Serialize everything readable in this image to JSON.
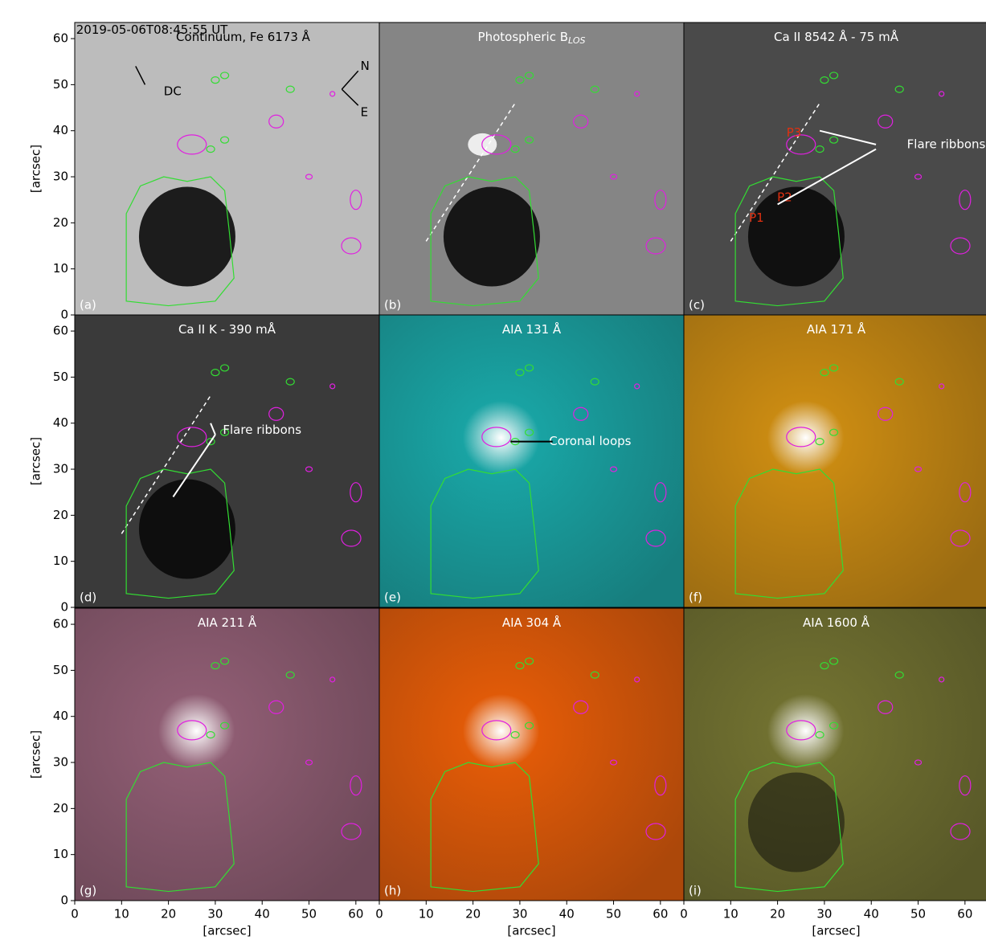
{
  "chart_data": [
    {
      "type": "image",
      "title": "Continuum, Fe 6173 Å",
      "panel_label": "(a)",
      "color": "#bcbcbc",
      "xlim": [
        0,
        65
      ],
      "ylim": [
        0,
        63.5
      ],
      "yticks": [
        0,
        10,
        20,
        30,
        40,
        50,
        60
      ],
      "ylabel": "[arcsec]",
      "annotations": [
        "2019-05-06T08:45:55 UT",
        "DC",
        "N",
        "E"
      ]
    },
    {
      "type": "image",
      "title": "Photospheric B",
      "title_sub": "LOS",
      "panel_label": "(b)",
      "color": "#858585",
      "xlim": [
        0,
        65
      ],
      "ylim": [
        0,
        63.5
      ]
    },
    {
      "type": "image",
      "title": "Ca II 8542 Å - 75 mÅ",
      "panel_label": "(c)",
      "color": "#4a4a4a",
      "xlim": [
        0,
        65
      ],
      "ylim": [
        0,
        63.5
      ],
      "annotations": [
        "Flare ribbons",
        "P1",
        "P2",
        "P3"
      ]
    },
    {
      "type": "image",
      "title": "Ca II K - 390 mÅ",
      "panel_label": "(d)",
      "color": "#3a3a3a",
      "xlim": [
        0,
        65
      ],
      "ylim": [
        0,
        63.5
      ],
      "yticks": [
        0,
        10,
        20,
        30,
        40,
        50,
        60
      ],
      "ylabel": "[arcsec]",
      "annotations": [
        "Flare ribbons"
      ]
    },
    {
      "type": "image",
      "title": "AIA 131 Å",
      "panel_label": "(e)",
      "color": "#19a3a3",
      "xlim": [
        0,
        65
      ],
      "ylim": [
        0,
        63.5
      ],
      "annotations": [
        "Coronal loops"
      ]
    },
    {
      "type": "image",
      "title": "AIA 171 Å",
      "panel_label": "(f)",
      "color": "#c98a12",
      "xlim": [
        0,
        65
      ],
      "ylim": [
        0,
        63.5
      ]
    },
    {
      "type": "image",
      "title": "AIA 211 Å",
      "panel_label": "(g)",
      "color": "#8e5c72",
      "xlim": [
        0,
        65
      ],
      "ylim": [
        0,
        63.5
      ],
      "xticks": [
        0,
        10,
        20,
        30,
        40,
        50,
        60
      ],
      "yticks": [
        0,
        10,
        20,
        30,
        40,
        50,
        60
      ],
      "xlabel": "[arcsec]",
      "ylabel": "[arcsec]"
    },
    {
      "type": "image",
      "title": "AIA 304 Å",
      "panel_label": "(h)",
      "color": "#e05a08",
      "xlim": [
        0,
        65
      ],
      "ylim": [
        0,
        63.5
      ],
      "xticks": [
        0,
        10,
        20,
        30,
        40,
        50,
        60
      ],
      "xlabel": "[arcsec]"
    },
    {
      "type": "image",
      "title": "AIA 1600 Å",
      "panel_label": "(i)",
      "color": "#707030",
      "xlim": [
        0,
        65
      ],
      "ylim": [
        0,
        63.5
      ],
      "xticks": [
        0,
        10,
        20,
        30,
        40,
        50,
        60
      ],
      "xlabel": "[arcsec]"
    }
  ]
}
